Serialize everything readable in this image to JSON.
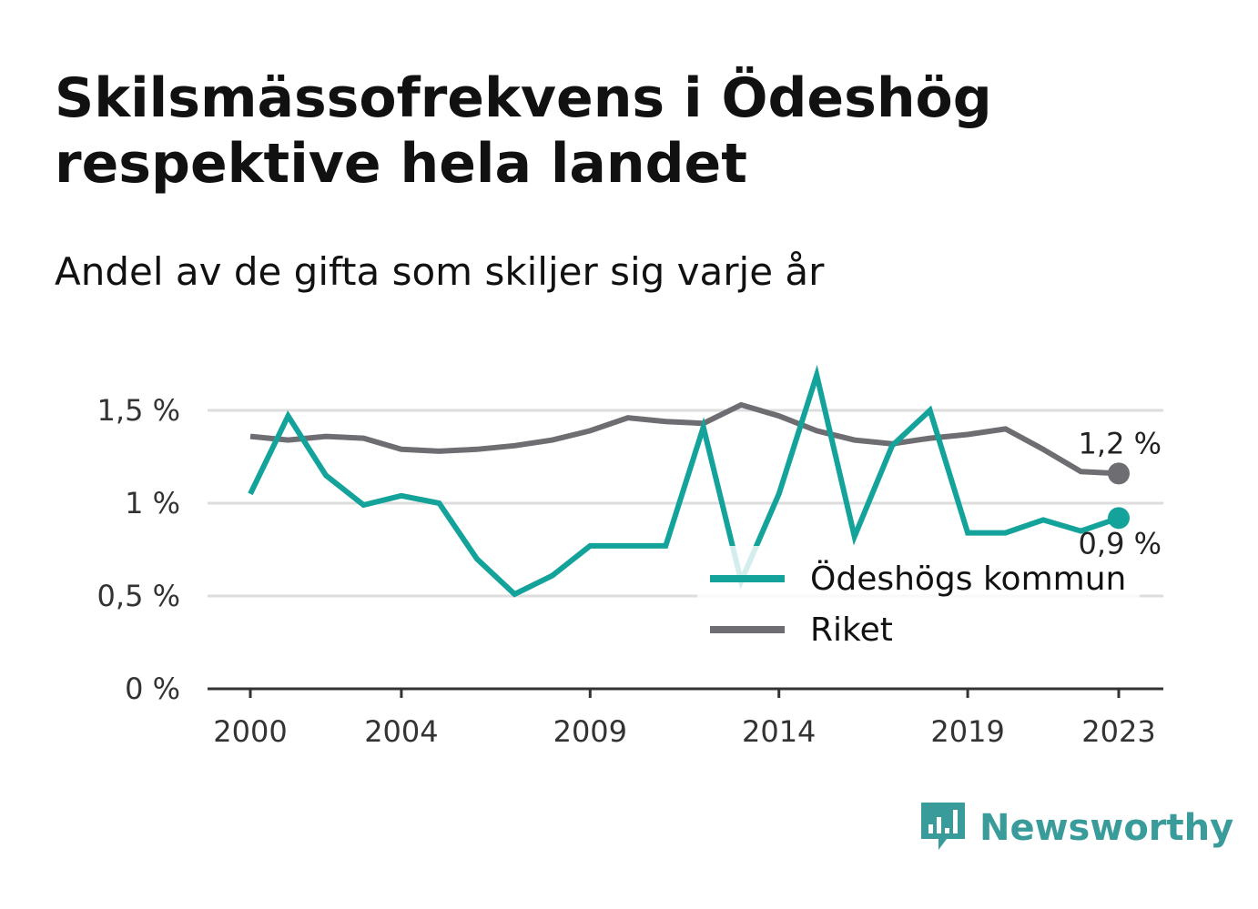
{
  "title": "Skilsmässofrekvens i Ödeshög respektive hela landet",
  "subtitle": "Andel av de gifta som skiljer sig varje år",
  "brand": {
    "name": "Newsworthy",
    "icon": "newsworthy-logo-icon",
    "color": "#3a9b9b"
  },
  "chart_data": {
    "type": "line",
    "x": [
      2000,
      2001,
      2002,
      2003,
      2004,
      2005,
      2006,
      2007,
      2008,
      2009,
      2010,
      2011,
      2012,
      2013,
      2014,
      2015,
      2016,
      2017,
      2018,
      2019,
      2020,
      2021,
      2022,
      2023
    ],
    "x_ticks": [
      2000,
      2004,
      2009,
      2014,
      2019,
      2023
    ],
    "x_tick_labels": [
      "2000",
      "2004",
      "2009",
      "2014",
      "2019",
      "2023"
    ],
    "ylim": [
      0,
      1.75
    ],
    "y_ticks": [
      0,
      0.5,
      1,
      1.5
    ],
    "y_tick_labels": [
      "0 %",
      "0,5 %",
      "1 %",
      "1,5 %"
    ],
    "grid": true,
    "legend_position": "bottom-right",
    "series": [
      {
        "name": "Ödeshögs kommun",
        "color": "#13a39a",
        "values": [
          1.05,
          1.47,
          1.15,
          0.99,
          1.04,
          1.0,
          0.7,
          0.51,
          0.61,
          0.77,
          0.77,
          0.77,
          1.41,
          0.58,
          1.05,
          1.69,
          0.82,
          1.31,
          1.5,
          0.84,
          0.84,
          0.91,
          0.85,
          0.92
        ],
        "end_label": "0,9 %"
      },
      {
        "name": "Riket",
        "color": "#6e6d72",
        "values": [
          1.36,
          1.34,
          1.36,
          1.35,
          1.29,
          1.28,
          1.29,
          1.31,
          1.34,
          1.39,
          1.46,
          1.44,
          1.43,
          1.53,
          1.47,
          1.39,
          1.34,
          1.32,
          1.35,
          1.37,
          1.4,
          1.29,
          1.17,
          1.16
        ],
        "end_label": "1,2 %"
      }
    ]
  }
}
